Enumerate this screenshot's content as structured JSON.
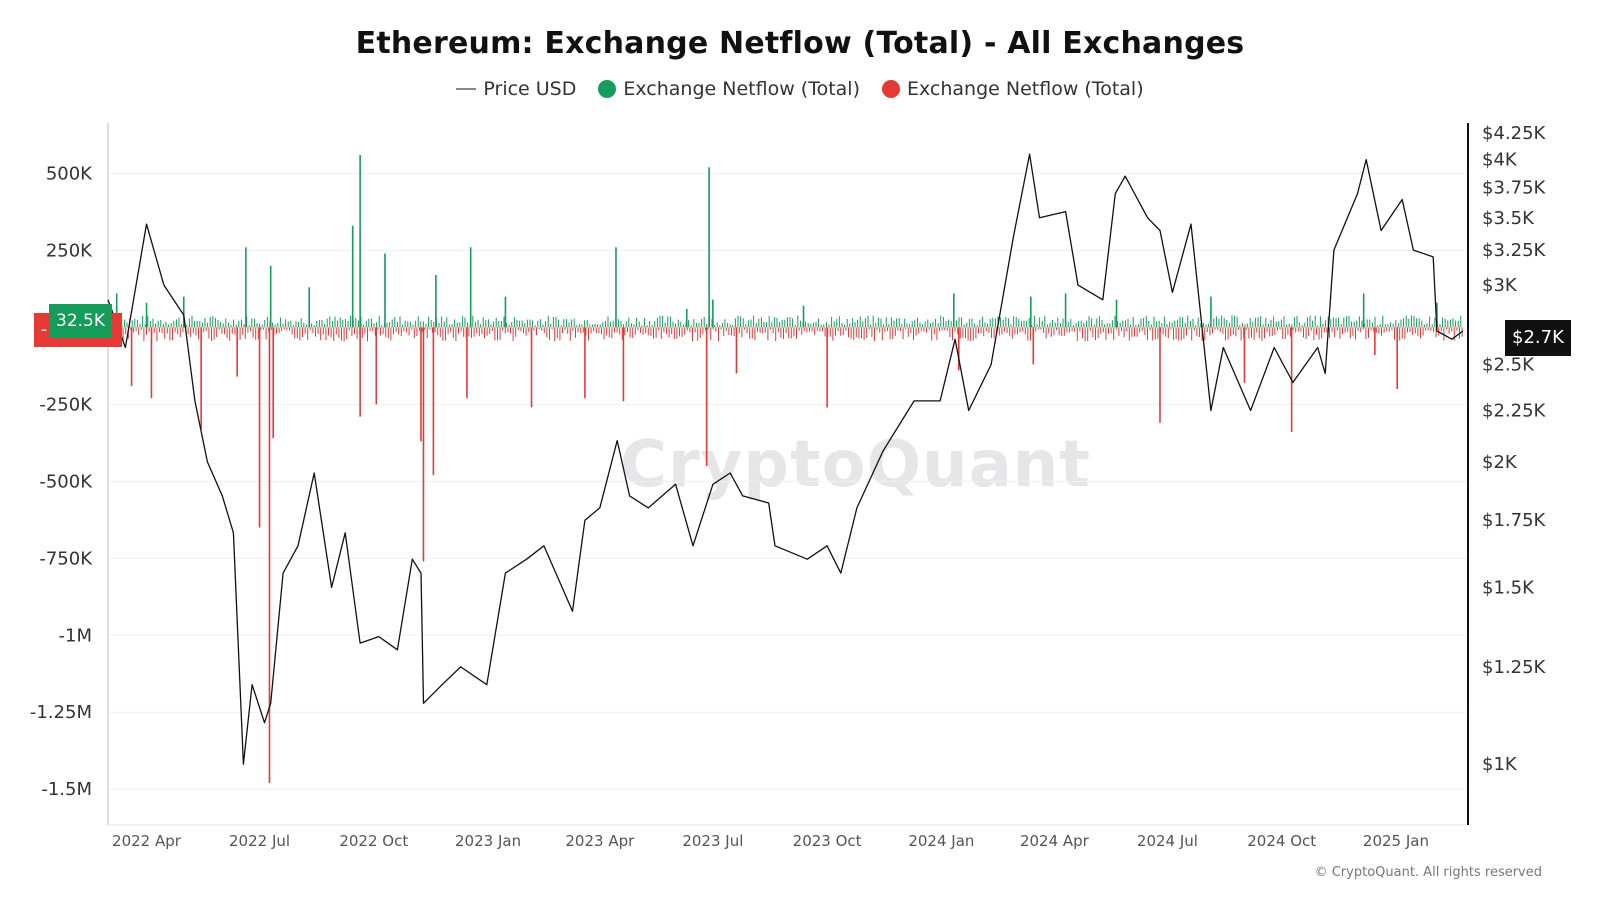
{
  "title": "Ethereum: Exchange Netflow (Total) - All Exchanges",
  "legend": {
    "price": "Price USD",
    "netflow_positive": "Exchange Netflow (Total)",
    "netflow_negative": "Exchange Netflow (Total)"
  },
  "colors": {
    "positive": "#169c5a",
    "negative": "#e53935",
    "price": "#111111",
    "grid": "#f0f0f0"
  },
  "watermark": "CryptoQuant",
  "copyright": "© CryptoQuant. All rights reserved",
  "tags": {
    "netflow_negative": "-",
    "netflow_positive": "32.5K",
    "price": "$2.7K"
  },
  "chart_data": {
    "type": "bar+line",
    "title": "Ethereum: Exchange Netflow (Total) - All Exchanges",
    "x_range": [
      "2022-03",
      "2025-02"
    ],
    "x_ticks": [
      "2022 Apr",
      "2022 Jul",
      "2022 Oct",
      "2023 Jan",
      "2023 Apr",
      "2023 Jul",
      "2023 Oct",
      "2024 Jan",
      "2024 Apr",
      "2024 Jul",
      "2024 Oct",
      "2025 Jan"
    ],
    "x_tick_dates": [
      "2022-04-01",
      "2022-07-01",
      "2022-10-01",
      "2023-01-01",
      "2023-04-01",
      "2023-07-01",
      "2023-10-01",
      "2024-01-01",
      "2024-04-01",
      "2024-07-01",
      "2024-10-01",
      "2025-01-01"
    ],
    "left_axis": {
      "ticks": [
        500000,
        250000,
        -250000,
        -500000,
        -750000,
        -1000000,
        -1250000,
        -1500000
      ],
      "tick_labels": [
        "500K",
        "250K",
        "-250K",
        "-500K",
        "-750K",
        "-1M",
        "-1.25M",
        "-1.5M"
      ],
      "range": [
        -1600000,
        680000
      ]
    },
    "right_axis": {
      "scale": "log",
      "ticks": [
        4250,
        4000,
        3750,
        3500,
        3250,
        3000,
        2750,
        2500,
        2250,
        2000,
        1750,
        1500,
        1250,
        1000
      ],
      "tick_labels": [
        "$4.25K",
        "$4K",
        "$3.75K",
        "$3.5K",
        "$3.25K",
        "$3K",
        "",
        "$2.5K",
        "$2.25K",
        "$2K",
        "$1.75K",
        "$1.5K",
        "$1.25K",
        "$1K"
      ],
      "range": [
        880,
        4400
      ]
    },
    "price_series": {
      "name": "Price USD",
      "points": [
        [
          "2022-03-01",
          2900
        ],
        [
          "2022-03-15",
          2600
        ],
        [
          "2022-04-01",
          3450
        ],
        [
          "2022-04-15",
          3000
        ],
        [
          "2022-05-01",
          2800
        ],
        [
          "2022-05-10",
          2300
        ],
        [
          "2022-05-20",
          2000
        ],
        [
          "2022-06-01",
          1850
        ],
        [
          "2022-06-10",
          1700
        ],
        [
          "2022-06-18",
          1000
        ],
        [
          "2022-06-25",
          1200
        ],
        [
          "2022-07-05",
          1100
        ],
        [
          "2022-07-10",
          1150
        ],
        [
          "2022-07-20",
          1550
        ],
        [
          "2022-08-01",
          1650
        ],
        [
          "2022-08-14",
          1950
        ],
        [
          "2022-08-28",
          1500
        ],
        [
          "2022-09-08",
          1700
        ],
        [
          "2022-09-20",
          1320
        ],
        [
          "2022-10-05",
          1340
        ],
        [
          "2022-10-20",
          1300
        ],
        [
          "2022-11-01",
          1600
        ],
        [
          "2022-11-08",
          1550
        ],
        [
          "2022-11-10",
          1150
        ],
        [
          "2022-11-25",
          1200
        ],
        [
          "2022-12-10",
          1250
        ],
        [
          "2022-12-31",
          1200
        ],
        [
          "2023-01-15",
          1550
        ],
        [
          "2023-02-01",
          1600
        ],
        [
          "2023-02-15",
          1650
        ],
        [
          "2023-03-10",
          1420
        ],
        [
          "2023-03-20",
          1750
        ],
        [
          "2023-04-01",
          1800
        ],
        [
          "2023-04-15",
          2100
        ],
        [
          "2023-04-25",
          1850
        ],
        [
          "2023-05-10",
          1800
        ],
        [
          "2023-06-01",
          1900
        ],
        [
          "2023-06-15",
          1650
        ],
        [
          "2023-07-01",
          1900
        ],
        [
          "2023-07-15",
          1950
        ],
        [
          "2023-07-25",
          1850
        ],
        [
          "2023-08-15",
          1820
        ],
        [
          "2023-08-20",
          1650
        ],
        [
          "2023-09-15",
          1600
        ],
        [
          "2023-10-01",
          1650
        ],
        [
          "2023-10-12",
          1550
        ],
        [
          "2023-10-25",
          1800
        ],
        [
          "2023-11-15",
          2050
        ],
        [
          "2023-12-10",
          2300
        ],
        [
          "2023-12-31",
          2300
        ],
        [
          "2024-01-12",
          2650
        ],
        [
          "2024-01-23",
          2250
        ],
        [
          "2024-02-10",
          2500
        ],
        [
          "2024-02-28",
          3350
        ],
        [
          "2024-03-12",
          4050
        ],
        [
          "2024-03-20",
          3500
        ],
        [
          "2024-04-10",
          3550
        ],
        [
          "2024-04-20",
          3000
        ],
        [
          "2024-05-10",
          2900
        ],
        [
          "2024-05-20",
          3700
        ],
        [
          "2024-05-28",
          3850
        ],
        [
          "2024-06-15",
          3500
        ],
        [
          "2024-06-25",
          3400
        ],
        [
          "2024-07-05",
          2950
        ],
        [
          "2024-07-20",
          3450
        ],
        [
          "2024-08-05",
          2250
        ],
        [
          "2024-08-15",
          2600
        ],
        [
          "2024-09-06",
          2250
        ],
        [
          "2024-09-25",
          2600
        ],
        [
          "2024-10-10",
          2400
        ],
        [
          "2024-10-30",
          2600
        ],
        [
          "2024-11-05",
          2450
        ],
        [
          "2024-11-12",
          3250
        ],
        [
          "2024-12-01",
          3700
        ],
        [
          "2024-12-08",
          4000
        ],
        [
          "2024-12-20",
          3400
        ],
        [
          "2025-01-06",
          3650
        ],
        [
          "2025-01-15",
          3250
        ],
        [
          "2025-01-31",
          3200
        ],
        [
          "2025-02-03",
          2700
        ],
        [
          "2025-02-15",
          2650
        ],
        [
          "2025-02-24",
          2700
        ]
      ]
    },
    "netflow_positive": {
      "name": "Exchange Netflow (Total)",
      "points": [
        [
          "2022-03-08",
          110000
        ],
        [
          "2022-04-01",
          80000
        ],
        [
          "2022-05-01",
          100000
        ],
        [
          "2022-06-20",
          260000
        ],
        [
          "2022-07-10",
          200000
        ],
        [
          "2022-08-10",
          130000
        ],
        [
          "2022-09-14",
          330000
        ],
        [
          "2022-09-20",
          560000
        ],
        [
          "2022-10-10",
          240000
        ],
        [
          "2022-11-20",
          170000
        ],
        [
          "2022-12-18",
          260000
        ],
        [
          "2023-01-15",
          100000
        ],
        [
          "2023-04-14",
          260000
        ],
        [
          "2023-06-10",
          60000
        ],
        [
          "2023-06-28",
          520000
        ],
        [
          "2023-07-01",
          90000
        ],
        [
          "2023-09-12",
          70000
        ],
        [
          "2024-01-11",
          110000
        ],
        [
          "2024-03-13",
          100000
        ],
        [
          "2024-04-10",
          110000
        ],
        [
          "2024-05-21",
          90000
        ],
        [
          "2024-08-05",
          100000
        ],
        [
          "2024-12-06",
          110000
        ],
        [
          "2025-02-03",
          80000
        ]
      ]
    },
    "netflow_negative": {
      "name": "Exchange Netflow (Total)",
      "points": [
        [
          "2022-03-20",
          -190000
        ],
        [
          "2022-04-05",
          -230000
        ],
        [
          "2022-05-15",
          -330000
        ],
        [
          "2022-06-13",
          -160000
        ],
        [
          "2022-07-01",
          -650000
        ],
        [
          "2022-07-09",
          -1480000
        ],
        [
          "2022-07-12",
          -360000
        ],
        [
          "2022-09-20",
          -290000
        ],
        [
          "2022-10-03",
          -250000
        ],
        [
          "2022-11-08",
          -370000
        ],
        [
          "2022-11-10",
          -760000
        ],
        [
          "2022-11-18",
          -480000
        ],
        [
          "2022-12-15",
          -230000
        ],
        [
          "2023-02-05",
          -260000
        ],
        [
          "2023-03-20",
          -230000
        ],
        [
          "2023-04-20",
          -240000
        ],
        [
          "2023-06-26",
          -450000
        ],
        [
          "2023-07-20",
          -150000
        ],
        [
          "2023-10-01",
          -260000
        ],
        [
          "2024-01-15",
          -140000
        ],
        [
          "2024-03-15",
          -120000
        ],
        [
          "2024-06-25",
          -310000
        ],
        [
          "2024-09-01",
          -180000
        ],
        [
          "2024-10-09",
          -340000
        ],
        [
          "2024-12-15",
          -90000
        ],
        [
          "2025-01-02",
          -200000
        ]
      ]
    }
  }
}
